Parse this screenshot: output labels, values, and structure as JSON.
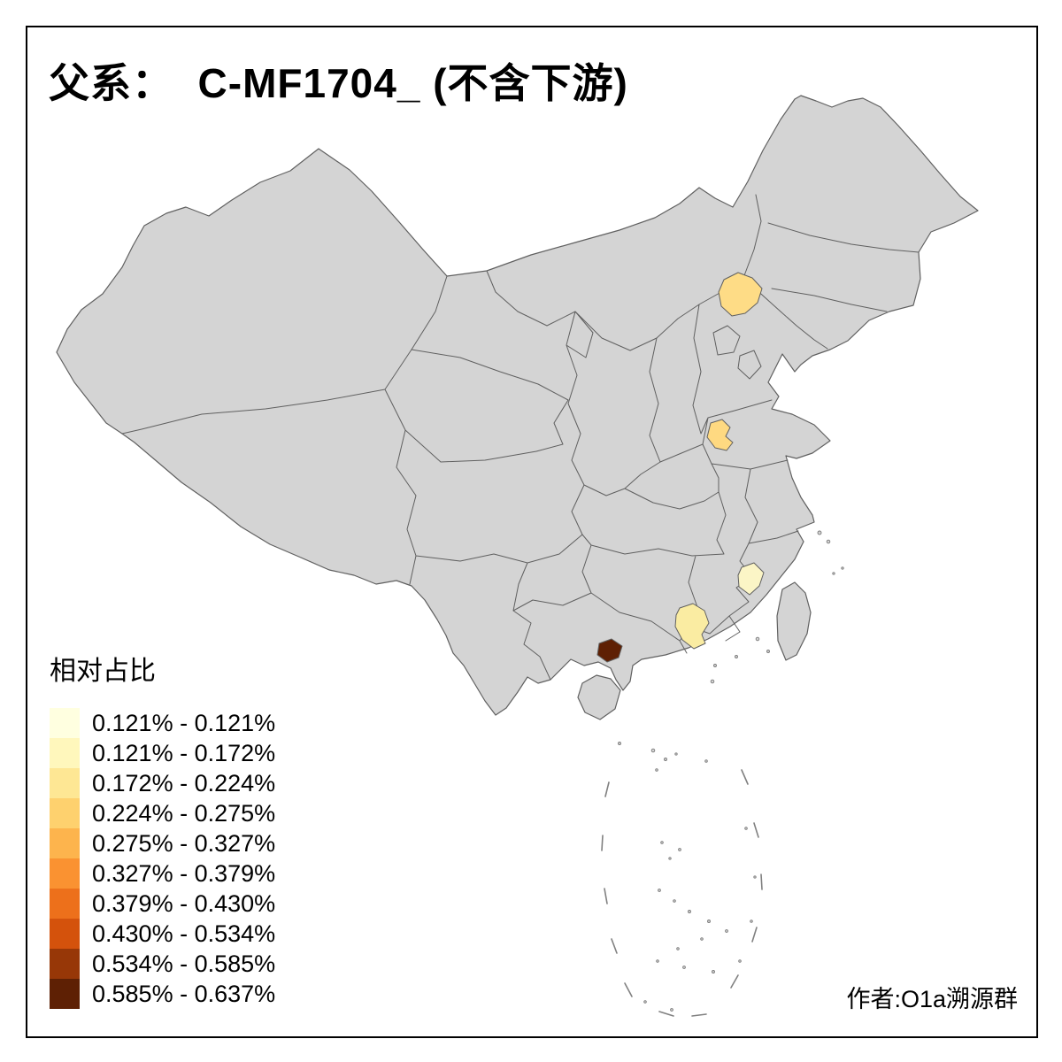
{
  "title": "父系：  C-MF1704_ (不含下游)",
  "legend": {
    "title": "相对占比",
    "entries": [
      {
        "label": "0.121% - 0.121%",
        "color": "#FFFFE0"
      },
      {
        "label": "0.121% - 0.172%",
        "color": "#FFF7BC"
      },
      {
        "label": "0.172% - 0.224%",
        "color": "#FEE794"
      },
      {
        "label": "0.224% - 0.275%",
        "color": "#FED16E"
      },
      {
        "label": "0.275% - 0.327%",
        "color": "#FDB44D"
      },
      {
        "label": "0.327% - 0.379%",
        "color": "#FA9231"
      },
      {
        "label": "0.379% - 0.430%",
        "color": "#ED701B"
      },
      {
        "label": "0.430% - 0.534%",
        "color": "#D4520C"
      },
      {
        "label": "0.534% - 0.585%",
        "color": "#973707"
      },
      {
        "label": "0.585% - 0.637%",
        "color": "#5E2004"
      }
    ]
  },
  "author": "作者:O1a溯源群",
  "map": {
    "land_fill": "#D4D4D4",
    "border_color": "#606060",
    "dash_color": "#808080",
    "background": "#FFFFFF",
    "highlighted_regions": [
      {
        "id": "region-inner-mongolia-east",
        "color": "#FEDC86"
      },
      {
        "id": "region-shandong-west",
        "color": "#FED981"
      },
      {
        "id": "region-fujian-northwest",
        "color": "#FBF5C6"
      },
      {
        "id": "region-guangdong-central",
        "color": "#FAECA2"
      },
      {
        "id": "region-guangxi-coast",
        "color": "#5E2004"
      }
    ]
  }
}
